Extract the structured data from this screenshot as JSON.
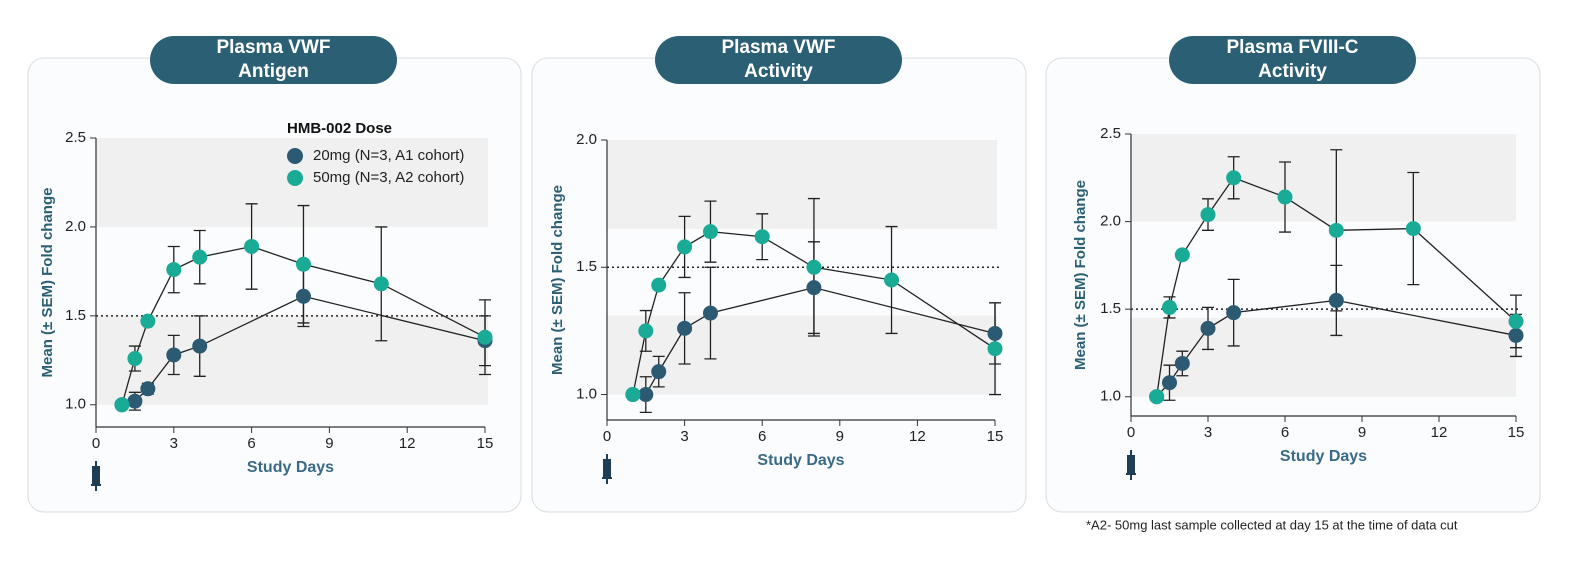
{
  "chart_data": [
    {
      "type": "line",
      "title": [
        "Plasma VWF",
        "Antigen"
      ],
      "xlabel": "Study Days",
      "ylabel": "Mean (± SEM) Fold change",
      "xlim": [
        0,
        15
      ],
      "xticks": [
        0,
        3,
        6,
        9,
        12,
        15
      ],
      "ylim": [
        0.875,
        2.5
      ],
      "yticks": [
        {
          "value": 1,
          "label": "1.0"
        },
        1.5,
        {
          "value": 2,
          "label": "2.0"
        },
        2.5
      ],
      "reference_line": 1.5,
      "shaded_ranges": [
        [
          1.0,
          1.5
        ],
        [
          2.0,
          2.5
        ]
      ],
      "legend_title": "HMB-002 Dose",
      "series": [
        {
          "name": "20mg (N=3, A1 cohort)",
          "color": "#2d5a73",
          "x": [
            1,
            1.5,
            2,
            3,
            4,
            8,
            15
          ],
          "values": [
            1.0,
            1.02,
            1.09,
            1.28,
            1.33,
            1.61,
            1.36
          ],
          "errors": [
            null,
            0.05,
            0.03,
            0.11,
            0.17,
            0.17,
            0.14
          ]
        },
        {
          "name": "50mg (N=3, A2 cohort)",
          "color": "#1aab96",
          "x": [
            1,
            1.5,
            2,
            3,
            4,
            6,
            8,
            11,
            15
          ],
          "values": [
            1.0,
            1.26,
            1.47,
            1.76,
            1.83,
            1.89,
            1.79,
            1.68,
            1.38
          ],
          "errors": [
            null,
            0.07,
            null,
            0.13,
            0.15,
            0.24,
            0.33,
            0.32,
            0.21
          ]
        }
      ]
    },
    {
      "type": "line",
      "title": [
        "Plasma VWF",
        "Activity"
      ],
      "xlabel": "Study Days",
      "ylabel": "Mean (± SEM) Fold change",
      "xlim": [
        0,
        15
      ],
      "xticks": [
        0,
        3,
        6,
        9,
        12,
        15
      ],
      "ylim": [
        0.9,
        2.0
      ],
      "yticks": [
        {
          "value": 1,
          "label": "1.0"
        },
        1.5,
        {
          "value": 2,
          "label": "2.0"
        }
      ],
      "reference_line": 1.5,
      "shaded_ranges": [
        [
          1.0,
          1.31
        ],
        [
          1.65,
          2.0
        ]
      ],
      "series": [
        {
          "color": "#2d5a73",
          "x": [
            1,
            1.5,
            2,
            3,
            4,
            8,
            15
          ],
          "values": [
            1.0,
            1.0,
            1.09,
            1.26,
            1.32,
            1.42,
            1.24
          ],
          "errors": [
            null,
            0.07,
            0.06,
            0.14,
            0.18,
            0.18,
            0.12
          ]
        },
        {
          "color": "#1aab96",
          "x": [
            1,
            1.5,
            2,
            3,
            4,
            6,
            8,
            11,
            15
          ],
          "values": [
            1.0,
            1.25,
            1.43,
            1.58,
            1.64,
            1.62,
            1.5,
            1.45,
            1.18
          ],
          "errors": [
            null,
            0.08,
            null,
            0.12,
            0.12,
            0.09,
            0.27,
            0.21,
            0.18
          ]
        }
      ]
    },
    {
      "type": "line",
      "title": [
        "Plasma FVIII-C",
        "Activity"
      ],
      "xlabel": "Study Days",
      "ylabel": "Mean (± SEM) Fold change",
      "xlim": [
        0,
        15
      ],
      "xticks": [
        0,
        3,
        6,
        9,
        12,
        15
      ],
      "ylim": [
        0.89,
        2.5
      ],
      "yticks": [
        {
          "value": 1,
          "label": "1.0"
        },
        1.5,
        {
          "value": 2,
          "label": "2.0"
        },
        2.5
      ],
      "reference_line": 1.5,
      "shaded_ranges": [
        [
          1.0,
          1.45
        ],
        [
          2.0,
          2.5
        ]
      ],
      "series": [
        {
          "color": "#2d5a73",
          "x": [
            1,
            1.5,
            2,
            3,
            4,
            8,
            15
          ],
          "values": [
            1.0,
            1.08,
            1.19,
            1.39,
            1.48,
            1.55,
            1.35
          ],
          "errors": [
            null,
            0.1,
            0.07,
            0.12,
            0.19,
            0.2,
            0.12
          ]
        },
        {
          "color": "#1aab96",
          "x": [
            1,
            1.5,
            2,
            3,
            4,
            6,
            8,
            11,
            15
          ],
          "values": [
            1.0,
            1.51,
            1.81,
            2.04,
            2.25,
            2.14,
            1.95,
            1.96,
            1.43
          ],
          "errors": [
            null,
            0.06,
            null,
            0.09,
            0.12,
            0.2,
            0.46,
            0.32,
            0.15
          ]
        }
      ]
    }
  ],
  "footnote": "*A2- 50mg last sample collected at day 15 at the time of data cut"
}
